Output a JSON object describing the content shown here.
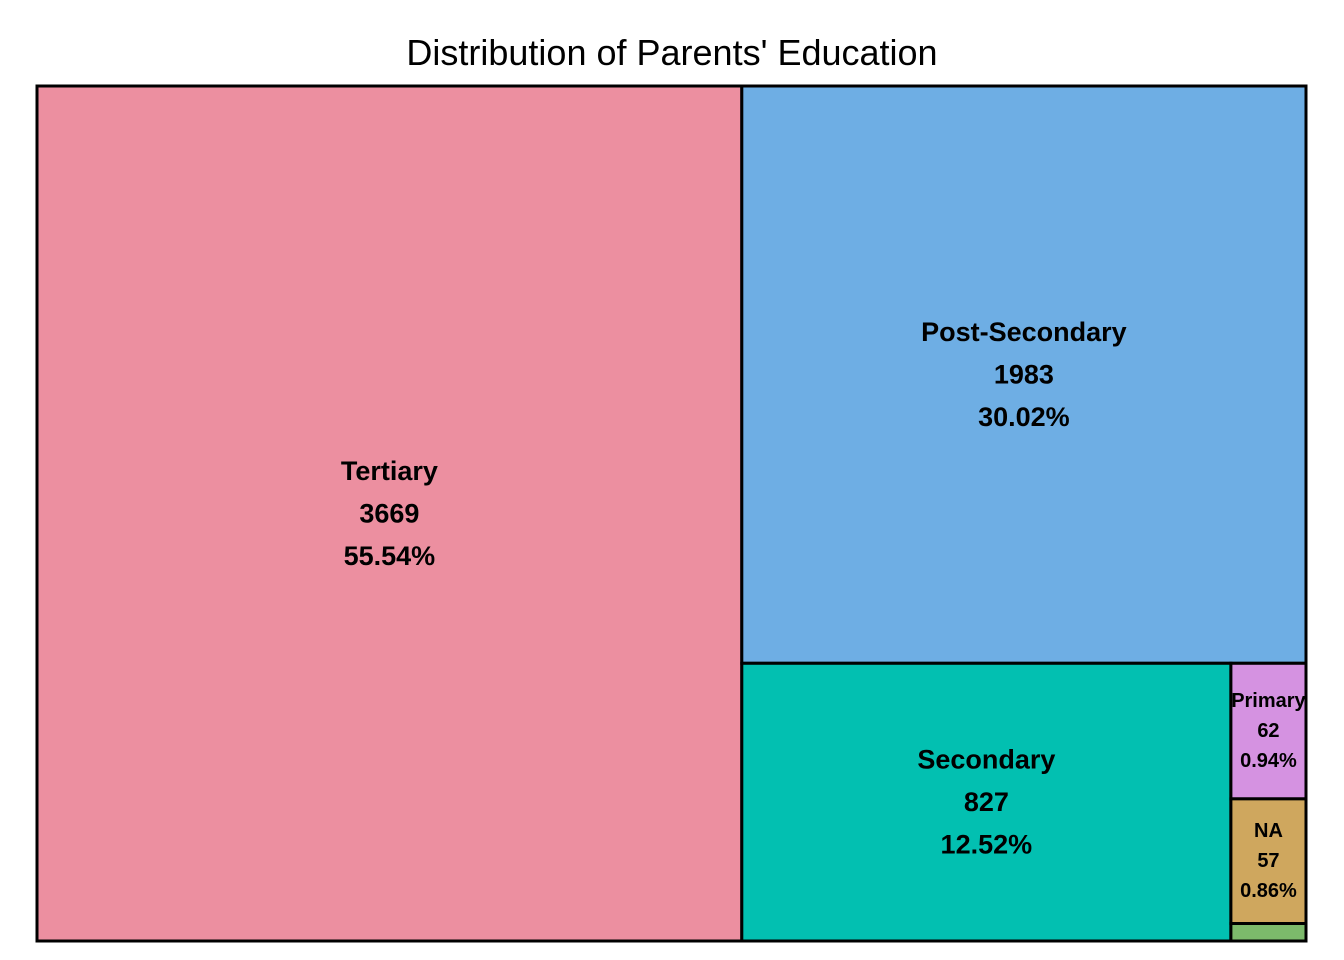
{
  "chart_data": {
    "type": "treemap",
    "title": "Distribution of Parents' Education",
    "items": [
      {
        "label": "Tertiary",
        "count": "3669",
        "percent": "55.54%",
        "value": 3669,
        "color": "#ec8fa0"
      },
      {
        "label": "Post-Secondary",
        "count": "1983",
        "percent": "30.02%",
        "value": 1983,
        "color": "#6eaee4"
      },
      {
        "label": "Secondary",
        "count": "827",
        "percent": "12.52%",
        "value": 827,
        "color": "#02c0b1"
      },
      {
        "label": "Primary",
        "count": "62",
        "percent": "0.94%",
        "value": 62,
        "color": "#d592e1"
      },
      {
        "label": "NA",
        "count": "57",
        "percent": "0.86%",
        "value": 57,
        "color": "#cfa75e"
      },
      {
        "label": "",
        "count": "",
        "percent": "",
        "value": 8,
        "color": "#7cba6b"
      }
    ],
    "border_color": "#000000"
  }
}
